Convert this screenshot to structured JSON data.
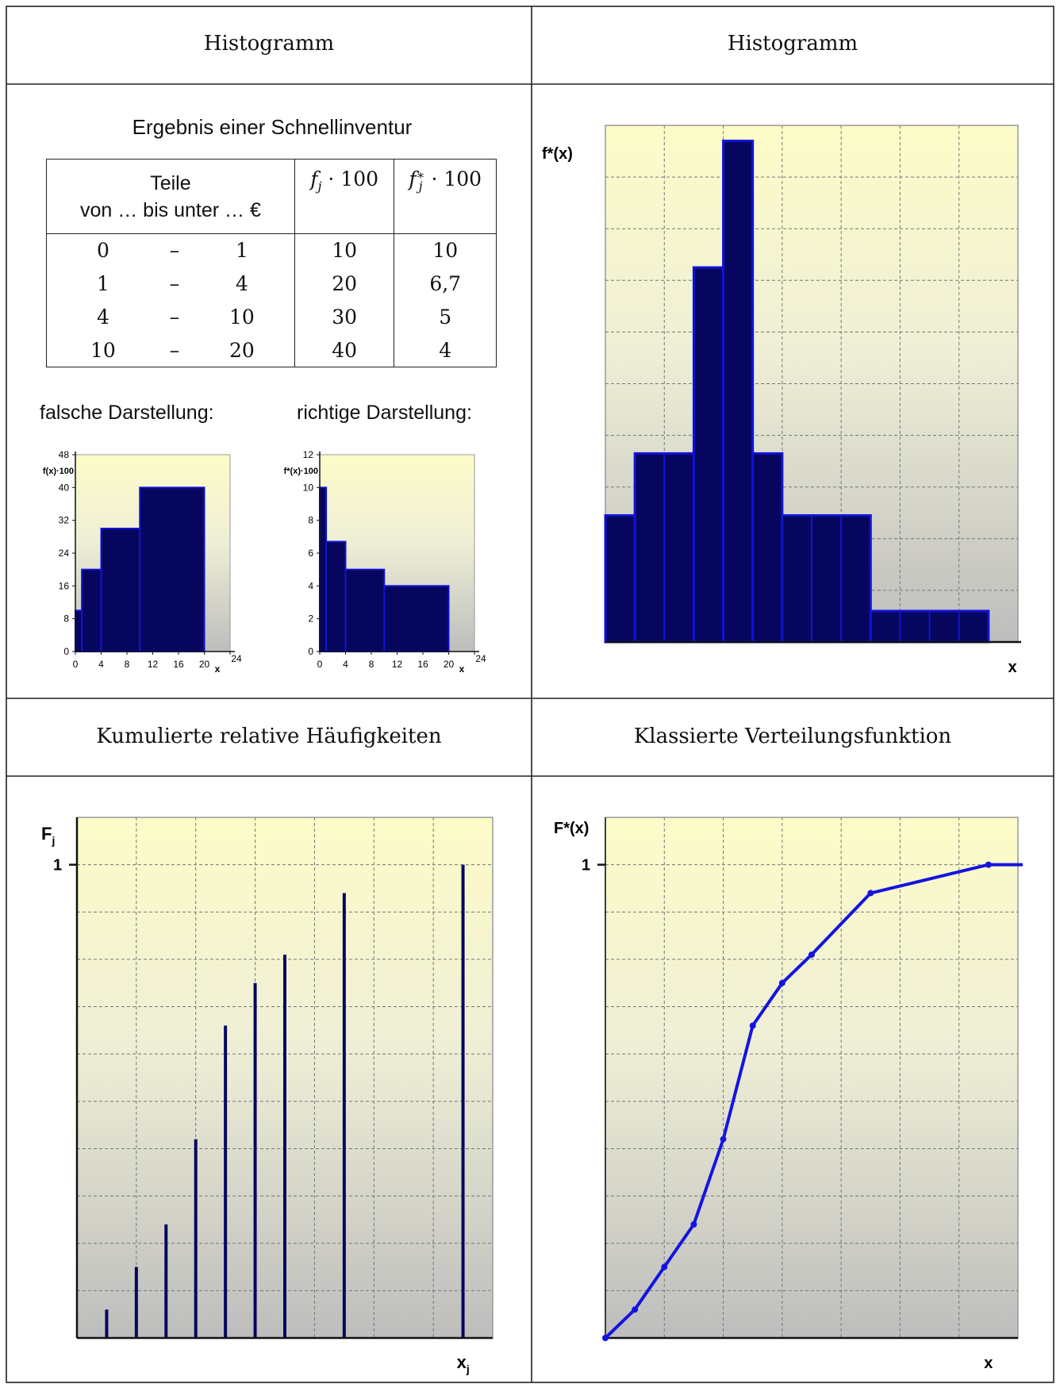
{
  "grid": {
    "top_left_header": "Histogramm",
    "top_right_header": "Histogramm",
    "bottom_left_header": "Kumulierte relative Häufigkeiten",
    "bottom_right_header": "Klassierte Verteilungsfunktion"
  },
  "inventory": {
    "title": "Ergebnis einer Schnellinventur",
    "col_class_line1": "Teile",
    "col_class_line2": "von … bis unter … €",
    "col_f": "f_j · 100",
    "col_fstar": "f*_j · 100",
    "rows": [
      {
        "from": "0",
        "dash": "–",
        "to": "1",
        "f": "10",
        "fstar": "10"
      },
      {
        "from": "1",
        "dash": "–",
        "to": "4",
        "f": "20",
        "fstar": "6,7"
      },
      {
        "from": "4",
        "dash": "–",
        "to": "10",
        "f": "30",
        "fstar": "5"
      },
      {
        "from": "10",
        "dash": "–",
        "to": "20",
        "f": "40",
        "fstar": "4"
      }
    ],
    "wrong_label": "falsche Darstellung:",
    "right_label": "richtige Darstellung:"
  },
  "chart_data": [
    {
      "id": "wrong",
      "type": "bar",
      "ylabel": "f(x)·100",
      "xlabel": "x",
      "xlim": [
        0,
        24
      ],
      "ylim": [
        0,
        48
      ],
      "xticks": [
        0,
        4,
        8,
        12,
        16,
        20,
        24
      ],
      "yticks": [
        0,
        8,
        16,
        24,
        32,
        40,
        48
      ],
      "bars": [
        {
          "x0": 0,
          "x1": 1,
          "y": 10
        },
        {
          "x0": 1,
          "x1": 4,
          "y": 20
        },
        {
          "x0": 4,
          "x1": 10,
          "y": 30
        },
        {
          "x0": 10,
          "x1": 20,
          "y": 40
        }
      ]
    },
    {
      "id": "right",
      "type": "bar",
      "ylabel": "f*(x)·100",
      "xlabel": "x",
      "xlim": [
        0,
        24
      ],
      "ylim": [
        0,
        12
      ],
      "xticks": [
        0,
        4,
        8,
        12,
        16,
        20,
        24
      ],
      "yticks": [
        0,
        2,
        4,
        6,
        8,
        10,
        12
      ],
      "bars": [
        {
          "x0": 0,
          "x1": 1,
          "y": 10
        },
        {
          "x0": 1,
          "x1": 4,
          "y": 6.7
        },
        {
          "x0": 4,
          "x1": 10,
          "y": 5
        },
        {
          "x0": 10,
          "x1": 20,
          "y": 4
        }
      ]
    },
    {
      "id": "histogram",
      "type": "bar",
      "ylabel": "f*(x)",
      "xlabel": "x",
      "xlim": [
        0,
        14
      ],
      "ylim": [
        0,
        10
      ],
      "bars": [
        {
          "x0": 0,
          "x1": 1,
          "y": 2.45
        },
        {
          "x0": 1,
          "x1": 3,
          "y": 3.65
        },
        {
          "x0": 3,
          "x1": 4,
          "y": 7.25
        },
        {
          "x0": 4,
          "x1": 5,
          "y": 9.7
        },
        {
          "x0": 5,
          "x1": 6,
          "y": 3.65
        },
        {
          "x0": 6,
          "x1": 9,
          "y": 2.45
        },
        {
          "x0": 9,
          "x1": 13,
          "y": 0.6
        }
      ]
    },
    {
      "id": "cumulative",
      "type": "bar",
      "ylabel": "Fj",
      "xlabel": "xj",
      "ytick_label": "1",
      "xlim": [
        0,
        14
      ],
      "ylim": [
        0,
        1.1
      ],
      "stems": [
        {
          "x": 1,
          "y": 0.06
        },
        {
          "x": 2,
          "y": 0.15
        },
        {
          "x": 3,
          "y": 0.24
        },
        {
          "x": 4,
          "y": 0.42
        },
        {
          "x": 5,
          "y": 0.66
        },
        {
          "x": 6,
          "y": 0.75
        },
        {
          "x": 7,
          "y": 0.81
        },
        {
          "x": 9,
          "y": 0.94
        },
        {
          "x": 13,
          "y": 1.0
        }
      ]
    },
    {
      "id": "distribution",
      "type": "line",
      "ylabel": "F*(x)",
      "xlabel": "x",
      "ytick_label": "1",
      "xlim": [
        0,
        14
      ],
      "ylim": [
        0,
        1.1
      ],
      "points": [
        {
          "x": 0,
          "y": 0
        },
        {
          "x": 1,
          "y": 0.06
        },
        {
          "x": 2,
          "y": 0.15
        },
        {
          "x": 3,
          "y": 0.24
        },
        {
          "x": 4,
          "y": 0.42
        },
        {
          "x": 5,
          "y": 0.66
        },
        {
          "x": 6,
          "y": 0.75
        },
        {
          "x": 7,
          "y": 0.81
        },
        {
          "x": 9,
          "y": 0.94
        },
        {
          "x": 13,
          "y": 1.0
        },
        {
          "x": 14,
          "y": 1.0
        }
      ]
    }
  ]
}
